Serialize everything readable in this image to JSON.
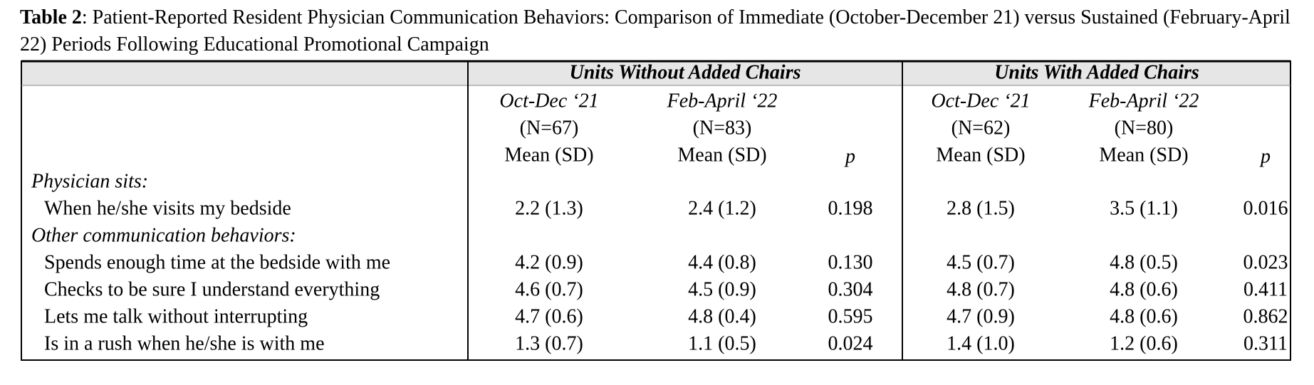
{
  "caption": {
    "label": "Table 2",
    "text": ": Patient-Reported Resident Physician Communication Behaviors: Comparison of Immediate (October-December 21) versus Sustained (February-April 22) Periods Following Educational Promotional Campaign"
  },
  "table": {
    "groups": [
      {
        "title": "Units Without Added Chairs",
        "periods": [
          {
            "name": "Oct-Dec ‘21",
            "n": "(N=67)",
            "stat": "Mean (SD)"
          },
          {
            "name": "Feb-April ‘22",
            "n": "(N=83)",
            "stat": "Mean (SD)"
          }
        ],
        "p": "p"
      },
      {
        "title": "Units With Added Chairs",
        "periods": [
          {
            "name": "Oct-Dec ‘21",
            "n": "(N=62)",
            "stat": "Mean (SD)"
          },
          {
            "name": "Feb-April ‘22",
            "n": "(N=80)",
            "stat": "Mean (SD)"
          }
        ],
        "p": "p"
      }
    ],
    "sections": [
      {
        "title": "Physician sits:",
        "rows": [
          {
            "label": "When he/she visits my bedside",
            "cells": [
              "2.2 (1.3)",
              "2.4 (1.2)",
              "0.198",
              "2.8 (1.5)",
              "3.5 (1.1)",
              "0.016"
            ]
          }
        ]
      },
      {
        "title": "Other communication behaviors:",
        "rows": [
          {
            "label": "Spends enough time at the bedside with me",
            "cells": [
              "4.2 (0.9)",
              "4.4 (0.8)",
              "0.130",
              "4.5 (0.7)",
              "4.8 (0.5)",
              "0.023"
            ]
          },
          {
            "label": "Checks to be sure I understand everything",
            "cells": [
              "4.6 (0.7)",
              "4.5 (0.9)",
              "0.304",
              "4.8 (0.7)",
              "4.8 (0.6)",
              "0.411"
            ]
          },
          {
            "label": "Lets me talk without interrupting",
            "cells": [
              "4.7 (0.6)",
              "4.8 (0.4)",
              "0.595",
              "4.7 (0.9)",
              "4.8 (0.6)",
              "0.862"
            ]
          },
          {
            "label": "Is in a rush when he/she is with me",
            "cells": [
              "1.3 (0.7)",
              "1.1 (0.5)",
              "0.024",
              "1.4 (1.0)",
              "1.2 (0.6)",
              "0.311"
            ]
          }
        ]
      }
    ]
  }
}
